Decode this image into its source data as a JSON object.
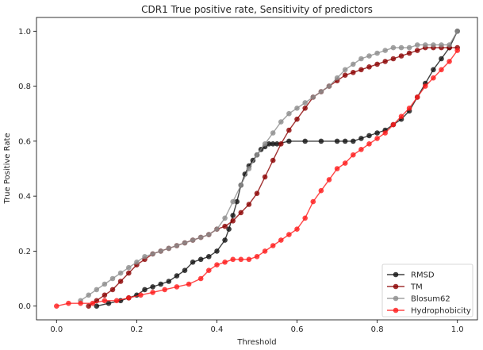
{
  "chart_data": {
    "type": "line",
    "title": "CDR1 True positive rate, Sensitivity of predictors",
    "xlabel": "Threshold",
    "ylabel": "True Positive Rate",
    "xlim": [
      -0.05,
      1.05
    ],
    "ylim": [
      -0.05,
      1.05
    ],
    "xticks": [
      0.0,
      0.2,
      0.4,
      0.6,
      0.8,
      1.0
    ],
    "yticks": [
      0.0,
      0.2,
      0.4,
      0.6,
      0.8,
      1.0
    ],
    "xtick_labels": [
      "0.0",
      "0.2",
      "0.4",
      "0.6",
      "0.8",
      "1.0"
    ],
    "ytick_labels": [
      "0.0",
      "0.2",
      "0.4",
      "0.6",
      "0.8",
      "1.0"
    ],
    "legend_position": "lower-right",
    "series": [
      {
        "name": "RMSD",
        "color": "#111111",
        "x": [
          0.1,
          0.13,
          0.16,
          0.18,
          0.2,
          0.22,
          0.24,
          0.26,
          0.28,
          0.3,
          0.32,
          0.34,
          0.36,
          0.38,
          0.4,
          0.42,
          0.43,
          0.44,
          0.45,
          0.46,
          0.47,
          0.48,
          0.49,
          0.5,
          0.51,
          0.52,
          0.53,
          0.54,
          0.55,
          0.58,
          0.62,
          0.66,
          0.7,
          0.72,
          0.74,
          0.76,
          0.78,
          0.8,
          0.82,
          0.84,
          0.86,
          0.88,
          0.9,
          0.92,
          0.94,
          0.96,
          0.98,
          1.0
        ],
        "y": [
          0.0,
          0.01,
          0.02,
          0.03,
          0.04,
          0.06,
          0.07,
          0.08,
          0.09,
          0.11,
          0.13,
          0.16,
          0.17,
          0.18,
          0.2,
          0.24,
          0.28,
          0.33,
          0.38,
          0.44,
          0.48,
          0.51,
          0.53,
          0.55,
          0.57,
          0.58,
          0.59,
          0.59,
          0.59,
          0.6,
          0.6,
          0.6,
          0.6,
          0.6,
          0.6,
          0.61,
          0.62,
          0.63,
          0.64,
          0.66,
          0.68,
          0.71,
          0.76,
          0.81,
          0.86,
          0.9,
          0.94,
          1.0
        ]
      },
      {
        "name": "TM",
        "color": "#8b0000",
        "x": [
          0.08,
          0.1,
          0.12,
          0.14,
          0.16,
          0.18,
          0.2,
          0.22,
          0.24,
          0.26,
          0.28,
          0.3,
          0.32,
          0.34,
          0.36,
          0.38,
          0.4,
          0.42,
          0.44,
          0.46,
          0.48,
          0.5,
          0.52,
          0.54,
          0.56,
          0.58,
          0.6,
          0.62,
          0.64,
          0.66,
          0.68,
          0.7,
          0.72,
          0.74,
          0.76,
          0.78,
          0.8,
          0.82,
          0.84,
          0.86,
          0.88,
          0.9,
          0.92,
          0.94,
          0.96,
          0.98,
          1.0
        ],
        "y": [
          0.0,
          0.02,
          0.04,
          0.06,
          0.09,
          0.12,
          0.15,
          0.17,
          0.19,
          0.2,
          0.21,
          0.22,
          0.23,
          0.24,
          0.25,
          0.26,
          0.28,
          0.29,
          0.31,
          0.34,
          0.37,
          0.41,
          0.47,
          0.53,
          0.59,
          0.64,
          0.68,
          0.72,
          0.76,
          0.78,
          0.8,
          0.82,
          0.84,
          0.85,
          0.86,
          0.87,
          0.88,
          0.89,
          0.9,
          0.91,
          0.92,
          0.93,
          0.94,
          0.94,
          0.94,
          0.94,
          0.94
        ]
      },
      {
        "name": "Blosum62",
        "color": "#8c8c8c",
        "x": [
          0.06,
          0.08,
          0.1,
          0.12,
          0.14,
          0.16,
          0.18,
          0.2,
          0.22,
          0.24,
          0.26,
          0.28,
          0.3,
          0.32,
          0.34,
          0.36,
          0.38,
          0.4,
          0.42,
          0.44,
          0.46,
          0.48,
          0.5,
          0.52,
          0.54,
          0.56,
          0.58,
          0.6,
          0.62,
          0.64,
          0.66,
          0.68,
          0.7,
          0.72,
          0.74,
          0.76,
          0.78,
          0.8,
          0.82,
          0.84,
          0.86,
          0.88,
          0.9,
          0.92,
          0.94,
          0.96,
          0.98,
          1.0
        ],
        "y": [
          0.02,
          0.04,
          0.06,
          0.08,
          0.1,
          0.12,
          0.14,
          0.16,
          0.18,
          0.19,
          0.2,
          0.21,
          0.22,
          0.23,
          0.24,
          0.25,
          0.26,
          0.28,
          0.32,
          0.38,
          0.44,
          0.5,
          0.55,
          0.59,
          0.63,
          0.67,
          0.7,
          0.72,
          0.74,
          0.76,
          0.78,
          0.8,
          0.83,
          0.86,
          0.88,
          0.9,
          0.91,
          0.92,
          0.93,
          0.94,
          0.94,
          0.94,
          0.95,
          0.95,
          0.95,
          0.95,
          0.95,
          1.0
        ]
      },
      {
        "name": "Hydrophobicity",
        "color": "#ff1a1a",
        "x": [
          0.0,
          0.03,
          0.06,
          0.09,
          0.12,
          0.15,
          0.18,
          0.21,
          0.24,
          0.27,
          0.3,
          0.33,
          0.36,
          0.38,
          0.4,
          0.42,
          0.44,
          0.46,
          0.48,
          0.5,
          0.52,
          0.54,
          0.56,
          0.58,
          0.6,
          0.62,
          0.64,
          0.66,
          0.68,
          0.7,
          0.72,
          0.74,
          0.76,
          0.78,
          0.8,
          0.82,
          0.84,
          0.86,
          0.88,
          0.9,
          0.92,
          0.94,
          0.96,
          0.98,
          1.0
        ],
        "y": [
          0.0,
          0.01,
          0.01,
          0.01,
          0.02,
          0.02,
          0.03,
          0.04,
          0.05,
          0.06,
          0.07,
          0.08,
          0.1,
          0.13,
          0.15,
          0.16,
          0.17,
          0.17,
          0.17,
          0.18,
          0.2,
          0.22,
          0.24,
          0.26,
          0.28,
          0.32,
          0.38,
          0.42,
          0.46,
          0.5,
          0.52,
          0.55,
          0.57,
          0.59,
          0.61,
          0.63,
          0.66,
          0.69,
          0.72,
          0.76,
          0.8,
          0.83,
          0.86,
          0.89,
          0.93
        ]
      }
    ]
  }
}
